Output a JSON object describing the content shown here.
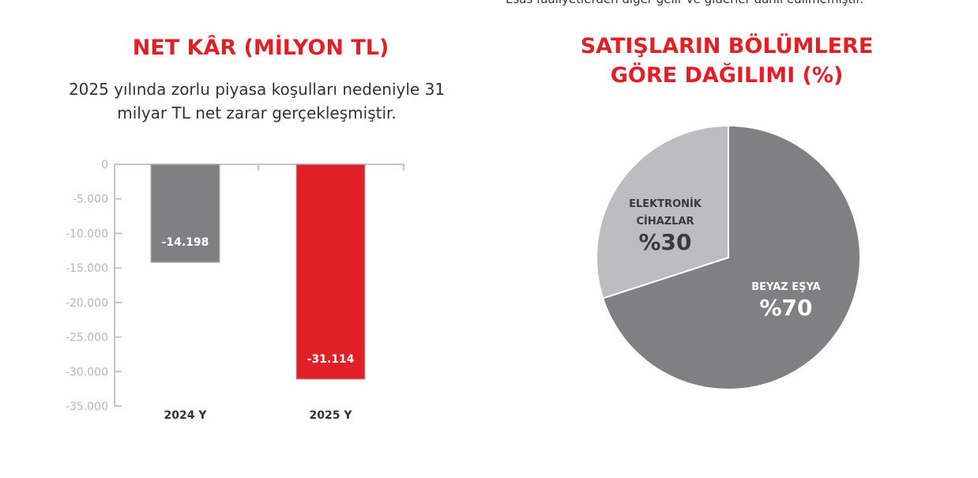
{
  "note": "Esas faaliyetlerden diğer gelir ve giderler dahil edilmemiştir.",
  "chart_data": [
    {
      "type": "bar",
      "title": "NET KÂR (MİLYON TL)",
      "subtitle": "2025 yılında zorlu piyasa koşulları nedeniyle 31 milyar TL net zarar gerçekleşmiştir.",
      "categories": [
        "2024 Y",
        "2025 Y"
      ],
      "values": [
        -14198,
        -31114
      ],
      "data_labels": [
        "-14.198",
        "-31.114"
      ],
      "colors": [
        "#808083",
        "#e11f27"
      ],
      "ylim": [
        -35000,
        0
      ],
      "yticks": [
        0,
        -5000,
        -10000,
        -15000,
        -20000,
        -25000,
        -30000,
        -35000
      ],
      "ytick_labels": [
        "0",
        "-5.000",
        "-10.000",
        "-15.000",
        "-20.000",
        "-25.000",
        "-30.000",
        "-35.000"
      ],
      "grid": false
    },
    {
      "type": "pie",
      "title": "SATIŞLARIN BÖLÜMLERE GÖRE DAĞILIMI (%)",
      "slices": [
        {
          "name": "BEYAZ EŞYA",
          "label": "%70",
          "value": 70,
          "color": "#808083"
        },
        {
          "name": "ELEKTRONİK CİHAZLAR",
          "label": "%30",
          "value": 30,
          "color": "#bdbdc0"
        }
      ]
    }
  ]
}
